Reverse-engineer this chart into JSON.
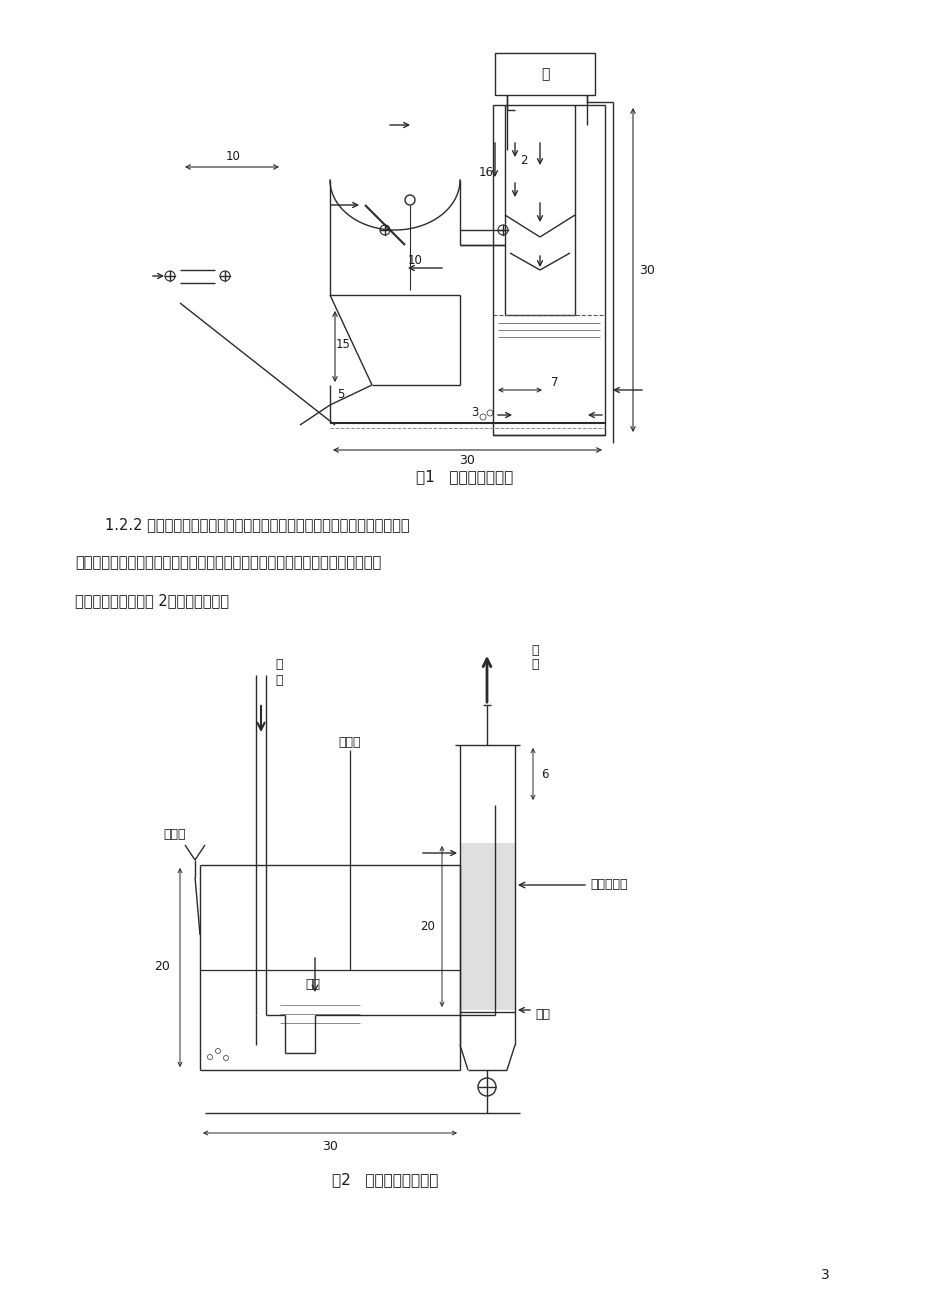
{
  "page_bg": "#ffffff",
  "fig_width": 9.2,
  "fig_height": 13.02,
  "line_color": "#2a2a2a",
  "text_color": "#1a1a1a",
  "para1": "1.2.2 沼气净化装置的设计与制作。沼气净化采取碱液吸收和用干燥剂干燥",
  "para2": "的方法对沼气进行净化，因此吸收部分采用筱状结构，干燥部分采用塔状结构。",
  "para3": "具体形状和数据如图 2，单位为厘米。",
  "fig1_cap": "图1   沼气发生器结构",
  "fig2_cap": "图2   沼气净化装置结构",
  "page_num": "3",
  "pump_label": "泵",
  "biogas_label": "沼气",
  "methane_label": "甲烷",
  "acidity_label": "酸度计",
  "alkaline_label": "碱液",
  "add_med_label": "加药口",
  "anhydrous_label": "无水氯化钓",
  "sand_label": "砂网"
}
